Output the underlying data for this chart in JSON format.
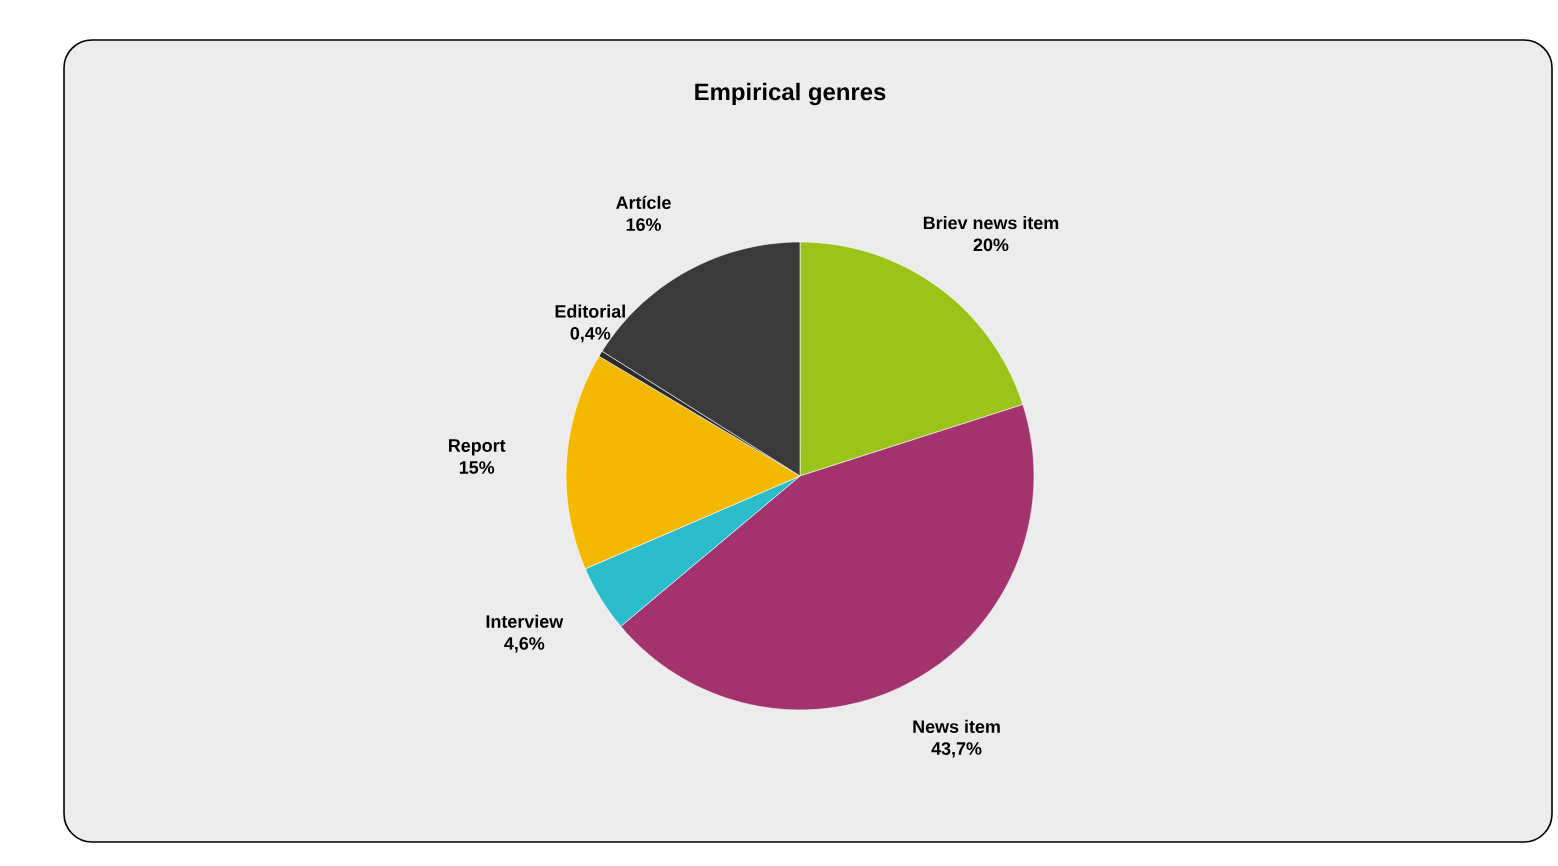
{
  "chart_data": {
    "type": "pie",
    "title": "Empirical genres",
    "categories": [
      "Briev news item",
      "News item",
      "Interview",
      "Report",
      "Editorial",
      "Artícle"
    ],
    "values": [
      20,
      43.7,
      4.6,
      15,
      0.4,
      16
    ],
    "value_labels": [
      "20%",
      "43,7%",
      "4,6%",
      "15%",
      "0,4%",
      "16%"
    ],
    "colors": [
      "#9cc31a",
      "#a3336f",
      "#2bbccc",
      "#f5b800",
      "#2a2a2a",
      "#3a3a3a"
    ]
  }
}
